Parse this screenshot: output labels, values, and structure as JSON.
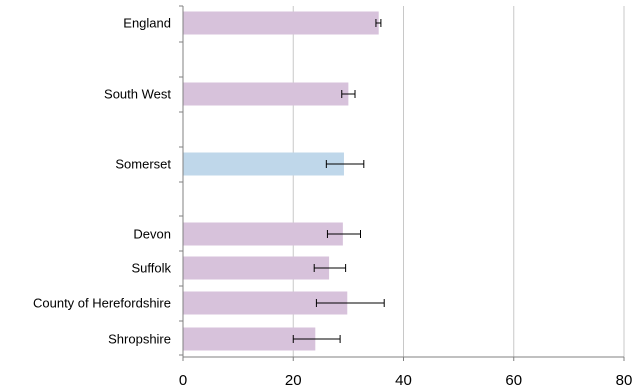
{
  "chart_data": {
    "type": "bar",
    "orientation": "horizontal",
    "title": "",
    "xlabel": "",
    "ylabel": "",
    "xlim": [
      0,
      80
    ],
    "xticks": [
      0,
      20,
      40,
      60,
      80
    ],
    "grid": true,
    "error_bars": true,
    "categories": [
      "England",
      "South West",
      "Somerset",
      "Devon",
      "Suffolk",
      "County of Herefordshire",
      "Shropshire"
    ],
    "values": [
      35.5,
      30.0,
      29.2,
      29.0,
      26.5,
      29.8,
      24.0
    ],
    "error_low": [
      35.0,
      28.8,
      26.0,
      26.2,
      23.8,
      24.2,
      20.0
    ],
    "error_high": [
      35.9,
      31.2,
      32.8,
      32.2,
      29.5,
      36.5,
      28.5
    ],
    "colors": {
      "default": "#d7c2db",
      "highlight": "#bfd7ea",
      "grid": "#c8c8c8",
      "axis": "#808080",
      "error": "#000000"
    },
    "highlight_category": "Somerset"
  }
}
